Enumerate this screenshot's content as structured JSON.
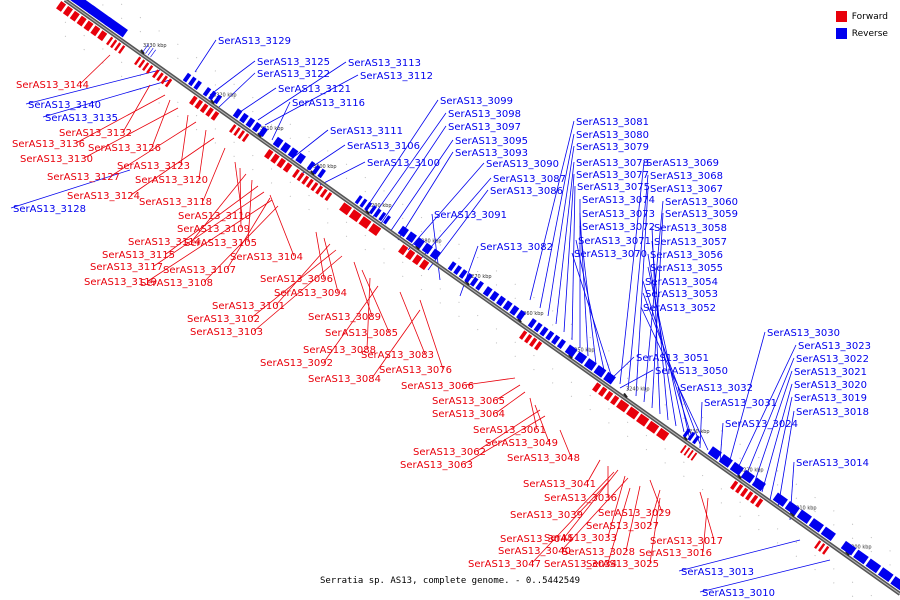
{
  "caption": "Serratia sp. AS13, complete genome. - 0..5442549",
  "legend": [
    {
      "label": "Forward",
      "color": "#e8000b"
    },
    {
      "label": "Reverse",
      "color": "#0000ee"
    }
  ],
  "colors": {
    "forward": "#e8000b",
    "reverse": "#0000ee",
    "backbone": "#555555"
  },
  "ticks": [
    "3330 kbp",
    "3320 kbp",
    "3310 kbp",
    "3300 kbp",
    "3290 kbp",
    "3280 kbp",
    "3270 kbp",
    "3260 kbp",
    "3250 kbp",
    "3240 kbp",
    "3230 kbp",
    "3220 kbp",
    "3210 kbp",
    "3200 kbp"
  ],
  "reverse_labels": [
    "SerAS13_3129",
    "SerAS13_3125",
    "SerAS13_3122",
    "SerAS13_3113",
    "SerAS13_3112",
    "SerAS13_3121",
    "SerAS13_3116",
    "SerAS13_3140",
    "SerAS13_3135",
    "SerAS13_3128",
    "SerAS13_3111",
    "SerAS13_3106",
    "SerAS13_3100",
    "SerAS13_3099",
    "SerAS13_3098",
    "SerAS13_3097",
    "SerAS13_3095",
    "SerAS13_3093",
    "SerAS13_3090",
    "SerAS13_3087",
    "SerAS13_3086",
    "SerAS13_3091",
    "SerAS13_3082",
    "SerAS13_3081",
    "SerAS13_3080",
    "SerAS13_3079",
    "SerAS13_3078",
    "SerAS13_3077",
    "SerAS13_3075",
    "SerAS13_3074",
    "SerAS13_3073",
    "SerAS13_3072",
    "SerAS13_3071",
    "SerAS13_3070",
    "SerAS13_3069",
    "SerAS13_3068",
    "SerAS13_3067",
    "SerAS13_3060",
    "SerAS13_3059",
    "SerAS13_3058",
    "SerAS13_3057",
    "SerAS13_3056",
    "SerAS13_3055",
    "SerAS13_3054",
    "SerAS13_3053",
    "SerAS13_3052",
    "SerAS13_3051",
    "SerAS13_3050",
    "SerAS13_3032",
    "SerAS13_3031",
    "SerAS13_3024",
    "SerAS13_3030",
    "SerAS13_3023",
    "SerAS13_3022",
    "SerAS13_3021",
    "SerAS13_3020",
    "SerAS13_3019",
    "SerAS13_3018",
    "SerAS13_3014",
    "SerAS13_3013",
    "SerAS13_3010"
  ],
  "forward_labels": [
    "SerAS13_3144",
    "SerAS13_3132",
    "SerAS13_3136",
    "SerAS13_3126",
    "SerAS13_3130",
    "SerAS13_3123",
    "SerAS13_3127",
    "SerAS13_3120",
    "SerAS13_3124",
    "SerAS13_3118",
    "SerAS13_3110",
    "SerAS13_3109",
    "SerAS13_3114",
    "SerAS13_3105",
    "SerAS13_3115",
    "SerAS13_3104",
    "SerAS13_3117",
    "SerAS13_3107",
    "SerAS13_3119",
    "SerAS13_3108",
    "SerAS13_3096",
    "SerAS13_3094",
    "SerAS13_3101",
    "SerAS13_3102",
    "SerAS13_3103",
    "SerAS13_3089",
    "SerAS13_3085",
    "SerAS13_3088",
    "SerAS13_3092",
    "SerAS13_3083",
    "SerAS13_3076",
    "SerAS13_3084",
    "SerAS13_3066",
    "SerAS13_3065",
    "SerAS13_3064",
    "SerAS13_3061",
    "SerAS13_3049",
    "SerAS13_3062",
    "SerAS13_3063",
    "SerAS13_3048",
    "SerAS13_3041",
    "SerAS13_3036",
    "SerAS13_3039",
    "SerAS13_3029",
    "SerAS13_3027",
    "SerAS13_3033",
    "SerAS13_3044",
    "SerAS13_3040",
    "SerAS13_3028",
    "SerAS13_3017",
    "SerAS13_3016",
    "SerAS13_3047",
    "SerAS13_3034",
    "SerAS13_3025"
  ]
}
